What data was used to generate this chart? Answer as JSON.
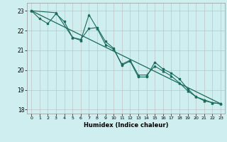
{
  "xlabel": "Humidex (Indice chaleur)",
  "bg_color": "#ceeef0",
  "grid_color": "#bbbbbb",
  "line_color": "#1a6b5a",
  "xlim": [
    -0.5,
    23.5
  ],
  "ylim": [
    17.8,
    23.4
  ],
  "yticks": [
    18,
    19,
    20,
    21,
    22,
    23
  ],
  "xticks": [
    0,
    1,
    2,
    3,
    4,
    5,
    6,
    7,
    8,
    9,
    10,
    11,
    12,
    13,
    14,
    15,
    16,
    17,
    18,
    19,
    20,
    21,
    22,
    23
  ],
  "series1_x": [
    0,
    1,
    2,
    3,
    4,
    5,
    6,
    7,
    8,
    9,
    10,
    11,
    12,
    13,
    14,
    15,
    16,
    17,
    18,
    19,
    20,
    21,
    22,
    23
  ],
  "series1_y": [
    23.0,
    22.6,
    22.35,
    22.85,
    22.45,
    21.65,
    21.55,
    22.1,
    22.15,
    21.45,
    21.1,
    20.25,
    20.45,
    19.65,
    19.65,
    20.4,
    20.05,
    19.85,
    19.55,
    19.05,
    18.65,
    18.5,
    18.35,
    18.3
  ],
  "series2_x": [
    0,
    3,
    5,
    6,
    7,
    8,
    9,
    10,
    11,
    12,
    13,
    14,
    15,
    16,
    17,
    18,
    19,
    20,
    21,
    22,
    23
  ],
  "series2_y": [
    23.0,
    22.9,
    21.65,
    21.5,
    22.8,
    22.1,
    21.3,
    21.05,
    20.3,
    20.5,
    19.75,
    19.75,
    20.2,
    19.95,
    19.7,
    19.35,
    18.95,
    18.65,
    18.45,
    18.35,
    18.3
  ],
  "series3_x": [
    0,
    23
  ],
  "series3_y": [
    23.0,
    18.3
  ]
}
